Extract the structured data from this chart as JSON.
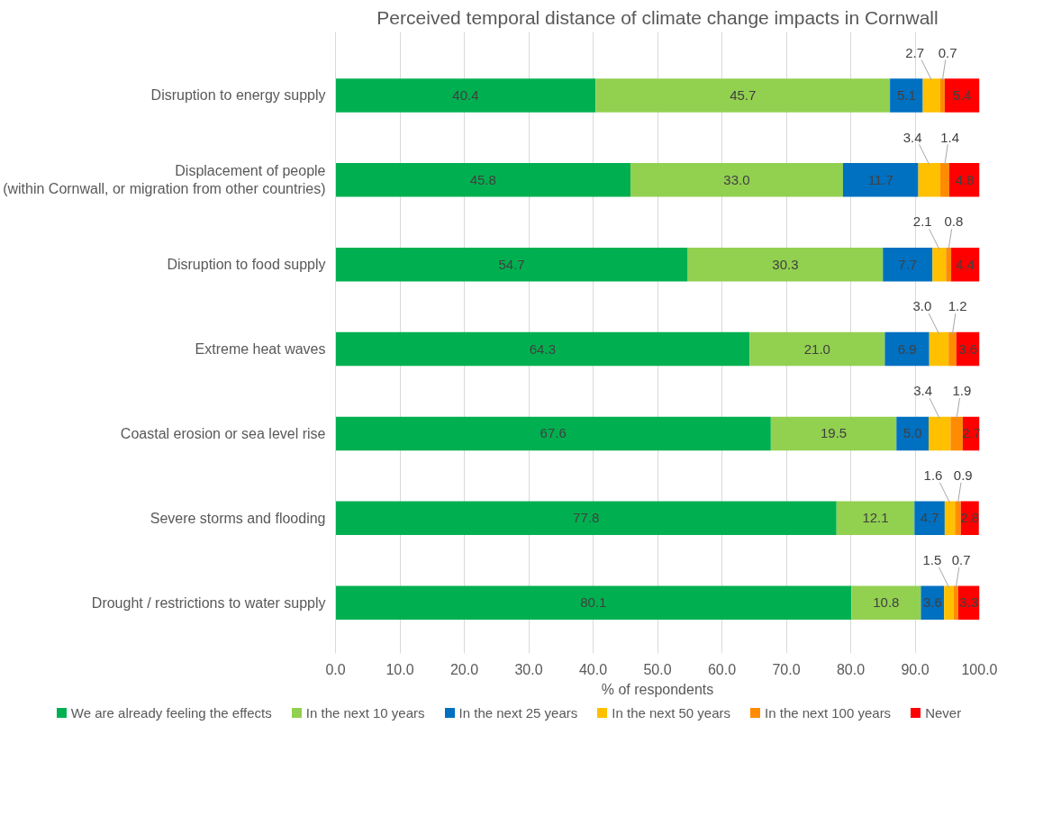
{
  "chart_data": {
    "type": "bar",
    "orientation": "horizontal",
    "stacked": true,
    "title": "Perceived temporal distance of climate change impacts in Cornwall",
    "xlabel": "% of respondents",
    "categories": [
      "Disruption to energy supply",
      "Displacement of people\n(within Cornwall, or migration from other countries)",
      "Disruption to food supply",
      "Extreme heat waves",
      "Coastal erosion or sea level rise",
      "Severe storms and flooding",
      "Drought / restrictions to water supply"
    ],
    "series": [
      {
        "name": "We are already feeling the effects",
        "color": "#00b050",
        "values": [
          40.4,
          45.8,
          54.7,
          64.3,
          67.6,
          77.8,
          80.1
        ],
        "value_labels": [
          "40.4",
          "45.8",
          "54.7",
          "64.3",
          "67.6",
          "77.8",
          "80.1"
        ]
      },
      {
        "name": "In the next 10 years",
        "color": "#92d050",
        "values": [
          45.7,
          33.0,
          30.3,
          21.0,
          19.5,
          12.1,
          10.8
        ],
        "value_labels": [
          "45.7",
          "33.0",
          "30.3",
          "21.0",
          "19.5",
          "12.1",
          "10.8"
        ]
      },
      {
        "name": "In the next 25 years",
        "color": "#0070c0",
        "values": [
          5.1,
          11.7,
          7.7,
          6.9,
          5.0,
          4.7,
          3.6
        ],
        "value_labels": [
          "5.1",
          "11.7",
          "7.7",
          "6.9",
          "5.0",
          "4.7",
          "3.6"
        ]
      },
      {
        "name": "In the next 50 years",
        "color": "#ffc000",
        "values": [
          2.7,
          3.4,
          2.1,
          3.0,
          3.4,
          1.6,
          1.5
        ],
        "value_labels": [
          "2.7",
          "3.4",
          "2.1",
          "3.0",
          "3.4",
          "1.6",
          "1.5"
        ]
      },
      {
        "name": "In the next 100 years",
        "color": "#ff8c00",
        "values": [
          0.7,
          1.4,
          0.8,
          1.2,
          1.9,
          0.9,
          0.7
        ],
        "value_labels": [
          "0.7",
          "1.4",
          "0.8",
          "1.2",
          "1.9",
          "0.9",
          "0.7"
        ]
      },
      {
        "name": "Never",
        "color": "#ff0000",
        "values": [
          5.4,
          4.8,
          4.4,
          3.6,
          2.7,
          2.8,
          3.3
        ],
        "value_labels": [
          "5.4",
          "4.8",
          "4.4",
          "3.6",
          "2.7",
          "2.8",
          "3.3"
        ]
      }
    ],
    "xlim": [
      0,
      100
    ],
    "xticks": [
      {
        "value": 0,
        "label": "0.0"
      },
      {
        "value": 10,
        "label": "10.0"
      },
      {
        "value": 20,
        "label": "20.0"
      },
      {
        "value": 30,
        "label": "30.0"
      },
      {
        "value": 40,
        "label": "40.0"
      },
      {
        "value": 50,
        "label": "50.0"
      },
      {
        "value": 60,
        "label": "60.0"
      },
      {
        "value": 70,
        "label": "70.0"
      },
      {
        "value": 80,
        "label": "80.0"
      },
      {
        "value": 90,
        "label": "90.0"
      },
      {
        "value": 100,
        "label": "100.0"
      }
    ],
    "grid": "x",
    "legend": "bottom"
  }
}
